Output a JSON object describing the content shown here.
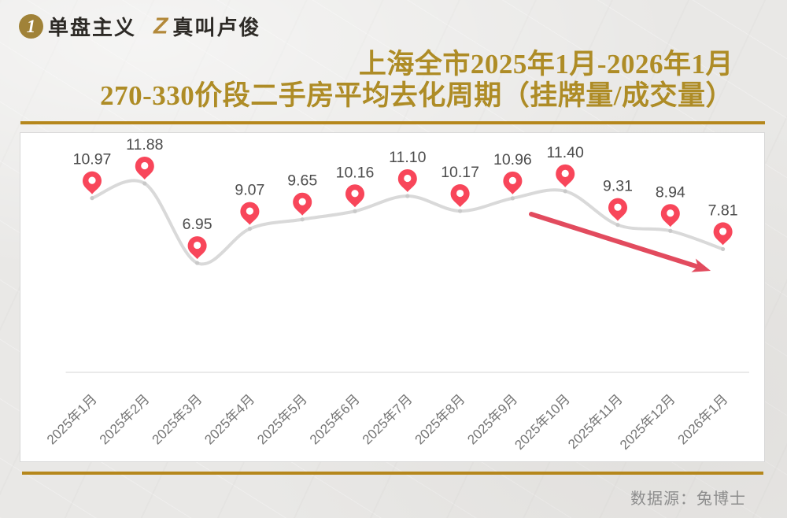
{
  "header": {
    "brand1": {
      "badge": "1",
      "name": "单盘主义"
    },
    "brand2": {
      "badge": "Z",
      "name": "真叫卢俊"
    }
  },
  "title": {
    "line1": "上海全市2025年1月-2026年1月",
    "line2": "270-330价段二手房平均去化周期（挂牌量/成交量）"
  },
  "footer": {
    "source": "数据源：兔博士"
  },
  "chart_data": {
    "type": "line",
    "title": "上海全市2025年1月-2026年1月 270-330价段二手房平均去化周期（挂牌量/成交量）",
    "categories": [
      "2025年1月",
      "2025年2月",
      "2025年3月",
      "2025年4月",
      "2025年5月",
      "2025年6月",
      "2025年7月",
      "2025年8月",
      "2025年9月",
      "2025年10月",
      "2025年11月",
      "2025年12月",
      "2026年1月"
    ],
    "values": [
      10.97,
      11.88,
      6.95,
      9.07,
      9.65,
      10.16,
      11.1,
      10.17,
      10.96,
      11.4,
      9.31,
      8.94,
      7.81
    ],
    "value_label_decimals": 2,
    "smooth": true,
    "marker": "map-pin",
    "grid": false,
    "legend": false,
    "x_label_rotation_deg": 45,
    "annotation": {
      "kind": "downward-trend-arrow"
    },
    "colors": {
      "line": "#d9d9d9",
      "point_dot": "#c9c9c9",
      "marker_pin": "#f8465a",
      "marker_pin_hole": "#ffffff",
      "value_label": "#4c4c4c",
      "axis_line": "#e3e3e3",
      "axis_label": "#757575",
      "trend_arrow": "#e24b5e"
    }
  },
  "theme": {
    "title_gold": "#ae8c26",
    "rule_gold": "#b5871c",
    "brand_text_color": "#2d2a26",
    "badge_gold": "#a08238",
    "source_gray": "#8d8d8d",
    "card_bg": "#ffffff",
    "card_border": "#d8d8d8",
    "page_bg": "#e9e8e6"
  }
}
